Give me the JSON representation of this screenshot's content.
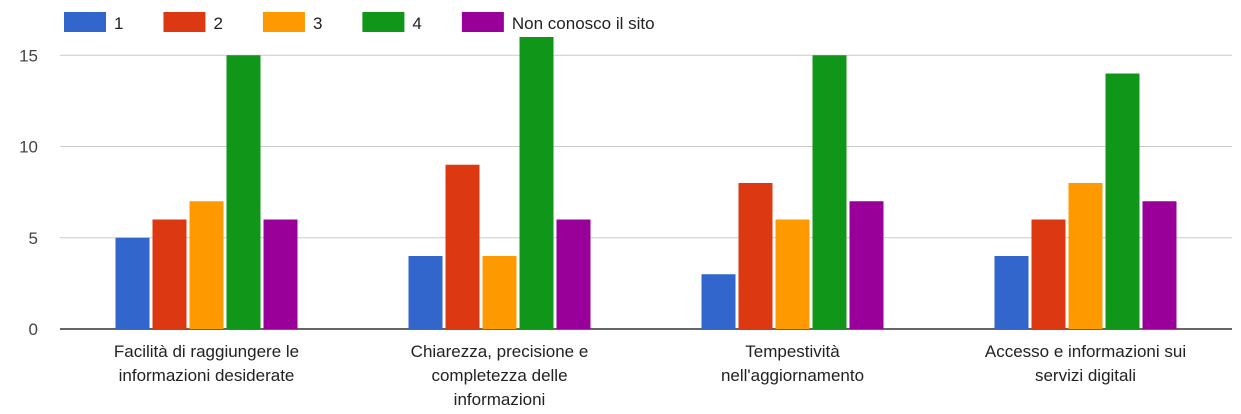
{
  "chart_data": {
    "type": "bar",
    "categories": [
      [
        "Facilità di raggiungere le",
        "informazioni desiderate"
      ],
      [
        "Chiarezza, precisione e",
        "completezza delle",
        "informazioni"
      ],
      [
        "Tempestività",
        "nell'aggiornamento"
      ],
      [
        "Accesso e informazioni sui",
        "servizi digitali"
      ]
    ],
    "series": [
      {
        "name": "1",
        "color": "#3366cc",
        "values": [
          5,
          4,
          3,
          4
        ]
      },
      {
        "name": "2",
        "color": "#dc3912",
        "values": [
          6,
          9,
          8,
          6
        ]
      },
      {
        "name": "3",
        "color": "#ff9900",
        "values": [
          7,
          4,
          6,
          8
        ]
      },
      {
        "name": "4",
        "color": "#109618",
        "values": [
          15,
          16,
          15,
          14
        ]
      },
      {
        "name": "Non conosco il sito",
        "color": "#990099",
        "values": [
          6,
          6,
          7,
          7
        ]
      }
    ],
    "ylim": [
      0,
      16
    ],
    "yticks": [
      0,
      5,
      10,
      15
    ],
    "grid": true,
    "legend": "top-left"
  }
}
